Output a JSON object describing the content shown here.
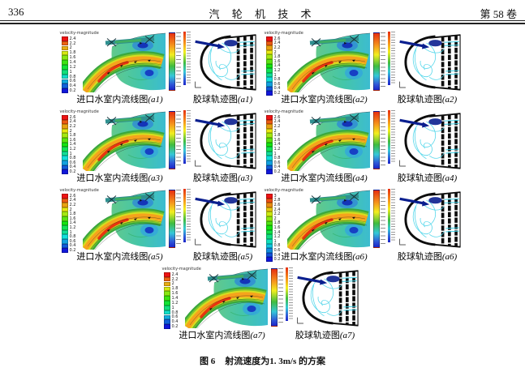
{
  "header": {
    "page_number": "336",
    "journal_title": "汽 轮 机 技 术",
    "volume": "第 58 卷"
  },
  "figure_caption": {
    "number": "图 6",
    "text": "射流速度为1. 3m/s 的方案"
  },
  "labels": {
    "flow_caption": "进口水室内流线图",
    "trajectory_caption": "胶球轨迹图",
    "legend_title": "velocity-magnitude"
  },
  "panels": [
    {
      "label": "(a1)",
      "legend_values": [
        "2.4",
        "2.2",
        "2",
        "1.8",
        "1.6",
        "1.4",
        "1.2",
        "1",
        "0.8",
        "0.6",
        "0.4",
        "0.2"
      ]
    },
    {
      "label": "(a2)",
      "legend_values": [
        "2.6",
        "2.4",
        "2.2",
        "2",
        "1.8",
        "1.6",
        "1.4",
        "1.2",
        "1",
        "0.8",
        "0.6",
        "0.4",
        "0.2"
      ]
    },
    {
      "label": "(a3)",
      "legend_values": [
        "2.6",
        "2.4",
        "2.2",
        "2",
        "1.8",
        "1.6",
        "1.4",
        "1.2",
        "1",
        "0.8",
        "0.6",
        "0.4",
        "0.2"
      ]
    },
    {
      "label": "(a4)",
      "legend_values": [
        "2.6",
        "2.4",
        "2.2",
        "2",
        "1.8",
        "1.6",
        "1.4",
        "1.2",
        "1",
        "0.8",
        "0.6",
        "0.4",
        "0.2"
      ]
    },
    {
      "label": "(a5)",
      "legend_values": [
        "2.6",
        "2.4",
        "2.2",
        "2",
        "1.8",
        "1.6",
        "1.4",
        "1.2",
        "1",
        "0.8",
        "0.6",
        "0.4",
        "0.2"
      ]
    },
    {
      "label": "(a6)",
      "legend_values": [
        "3",
        "2.8",
        "2.6",
        "2.4",
        "2.2",
        "2",
        "1.8",
        "1.6",
        "1.4",
        "1.2",
        "1",
        "0.8",
        "0.6",
        "0.4",
        "0.2"
      ]
    },
    {
      "label": "(a7)",
      "legend_values": [
        "2.4",
        "2.2",
        "2",
        "1.8",
        "1.6",
        "1.4",
        "1.2",
        "1",
        "0.8",
        "0.6",
        "0.4",
        "0.2"
      ]
    }
  ],
  "colors": {
    "legend_max_color": "#e62f10",
    "legend_min_color": "#1a24c8",
    "trajectory_line": "#3fd2e8",
    "inlet_arrow": "#0a1f8f",
    "chamber_green": "#5ec98a",
    "chamber_cyan": "#3cbcd0"
  }
}
